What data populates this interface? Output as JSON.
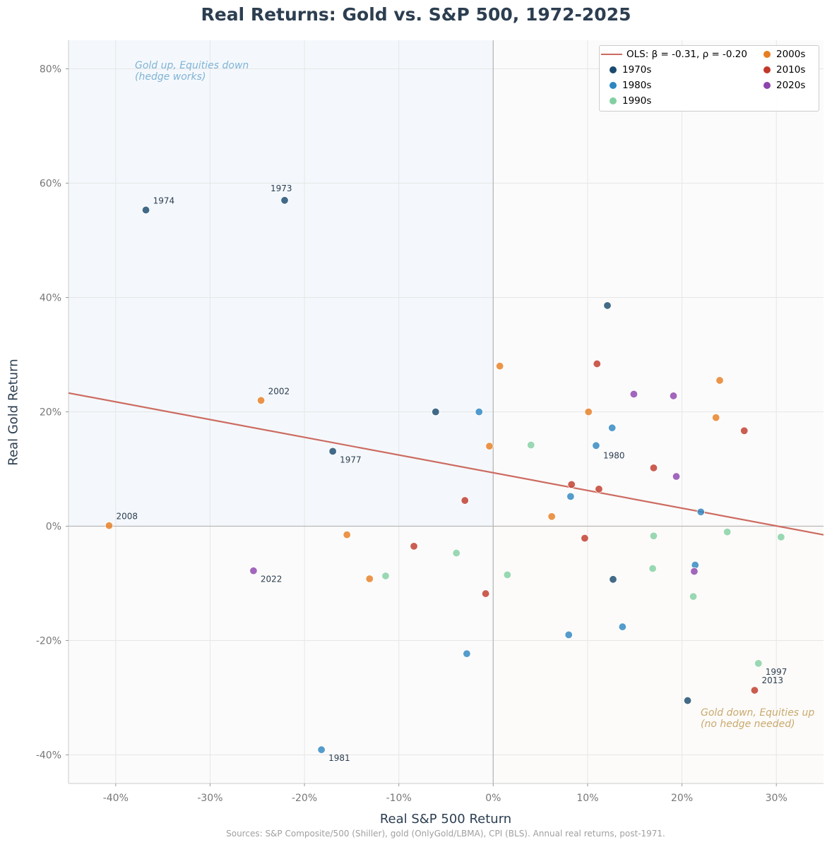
{
  "chart_data": {
    "type": "scatter",
    "title": "Real Returns: Gold vs. S&P 500, 1972-2025",
    "xlabel": "Real S&P 500 Return",
    "ylabel": "Real Gold Return",
    "xlim": [
      -45,
      35
    ],
    "ylim": [
      -45,
      85
    ],
    "x_ticks": [
      -40,
      -30,
      -20,
      -10,
      0,
      10,
      20,
      30
    ],
    "y_ticks": [
      -40,
      -20,
      0,
      20,
      40,
      60,
      80
    ],
    "x_tick_labels": [
      "-40%",
      "-30%",
      "-20%",
      "-10%",
      "0%",
      "10%",
      "20%",
      "30%"
    ],
    "y_tick_labels": [
      "-40%",
      "-20%",
      "0%",
      "20%",
      "40%",
      "60%",
      "80%"
    ],
    "grid": true,
    "legend_position": "top-right",
    "regression": {
      "label_prefix": "OLS: ",
      "label": "β = -0.31, ρ = -0.20",
      "color": "#c0392b",
      "line": [
        [
          -45,
          23.3
        ],
        [
          35,
          -1.5
        ]
      ]
    },
    "annotations": [
      {
        "text_lines": [
          "Gold up, Equities down",
          "(hedge works)"
        ],
        "color": "#7fb3d5"
      },
      {
        "text_lines": [
          "Gold down, Equities up",
          "(no hedge needed)"
        ],
        "color": "#c9a96e"
      }
    ],
    "source": "Sources: S&P Composite/500 (Shiller), gold (OnlyGold/LBMA), CPI (BLS). Annual real returns, post-1971.",
    "series": [
      {
        "name": "1970s",
        "color": "#1a4a6e",
        "points": [
          {
            "x": -22.1,
            "y": 57.0,
            "label": "1973"
          },
          {
            "x": -36.8,
            "y": 55.3,
            "label": "1974"
          },
          {
            "x": 12.1,
            "y": 38.6
          },
          {
            "x": -6.1,
            "y": 20.0
          },
          {
            "x": -17.0,
            "y": 13.1,
            "label": "1977"
          },
          {
            "x": 12.7,
            "y": -9.3
          },
          {
            "x": 20.6,
            "y": -30.5
          }
        ]
      },
      {
        "name": "1980s",
        "color": "#2e86c1",
        "points": [
          {
            "x": -18.2,
            "y": -39.1,
            "label": "1981"
          },
          {
            "x": -1.5,
            "y": 20.0
          },
          {
            "x": 12.6,
            "y": 17.2
          },
          {
            "x": 10.9,
            "y": 14.1,
            "label": "1980"
          },
          {
            "x": 8.2,
            "y": 5.2
          },
          {
            "x": 22.0,
            "y": 2.5
          },
          {
            "x": 21.4,
            "y": -6.8
          },
          {
            "x": 13.7,
            "y": -17.6
          },
          {
            "x": 8.0,
            "y": -19.0
          },
          {
            "x": -2.8,
            "y": -22.3
          }
        ]
      },
      {
        "name": "1990s",
        "color": "#82d0a2",
        "points": [
          {
            "x": 4.0,
            "y": 14.2
          },
          {
            "x": -3.9,
            "y": -4.7
          },
          {
            "x": 17.0,
            "y": -1.7
          },
          {
            "x": 24.8,
            "y": -1.0
          },
          {
            "x": 30.5,
            "y": -1.9
          },
          {
            "x": -11.4,
            "y": -8.7
          },
          {
            "x": 1.5,
            "y": -8.5
          },
          {
            "x": 16.9,
            "y": -7.4
          },
          {
            "x": 21.2,
            "y": -12.3
          },
          {
            "x": 28.1,
            "y": -24.0,
            "label": "1997"
          }
        ]
      },
      {
        "name": "2000s",
        "color": "#e67e22",
        "points": [
          {
            "x": -40.7,
            "y": 0.1,
            "label": "2008"
          },
          {
            "x": -24.6,
            "y": 22.0,
            "label": "2002"
          },
          {
            "x": 0.7,
            "y": 28.0
          },
          {
            "x": 10.1,
            "y": 20.0
          },
          {
            "x": 24.0,
            "y": 25.5
          },
          {
            "x": 23.6,
            "y": 19.0
          },
          {
            "x": -0.4,
            "y": 14.0
          },
          {
            "x": 6.2,
            "y": 1.7
          },
          {
            "x": -15.5,
            "y": -1.5
          },
          {
            "x": -13.1,
            "y": -9.2
          }
        ]
      },
      {
        "name": "2010s",
        "color": "#c0392b",
        "points": [
          {
            "x": 11.0,
            "y": 28.4
          },
          {
            "x": 26.6,
            "y": 16.7
          },
          {
            "x": 17.0,
            "y": 10.2
          },
          {
            "x": 8.3,
            "y": 7.3
          },
          {
            "x": 11.2,
            "y": 6.5
          },
          {
            "x": -3.0,
            "y": 4.5
          },
          {
            "x": 9.7,
            "y": -2.1
          },
          {
            "x": -8.4,
            "y": -3.5
          },
          {
            "x": -0.8,
            "y": -11.8
          },
          {
            "x": 27.7,
            "y": -28.7,
            "label": "2013"
          }
        ]
      },
      {
        "name": "2020s",
        "color": "#8e44ad",
        "points": [
          {
            "x": 14.9,
            "y": 23.1
          },
          {
            "x": 19.1,
            "y": 22.8
          },
          {
            "x": 19.4,
            "y": 8.7
          },
          {
            "x": -25.4,
            "y": -7.8,
            "label": "2022"
          },
          {
            "x": 21.3,
            "y": -7.9
          }
        ]
      }
    ]
  }
}
